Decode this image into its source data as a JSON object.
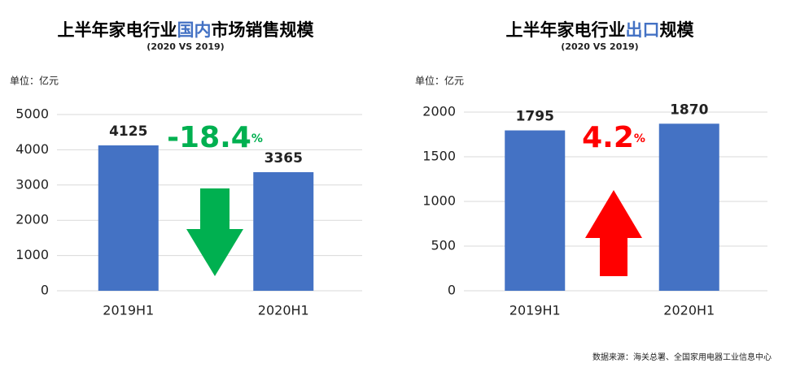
{
  "unit_label_left": "单位：亿元",
  "unit_label_right": "单位：亿元",
  "source": "数据来源：海关总署、全国家用电器工业信息中心",
  "chart_data": [
    {
      "type": "bar",
      "title": [
        "上半年家电行业",
        "国内",
        "市场销售规模"
      ],
      "title_colors": [
        "#000000",
        "#4472c4",
        "#000000"
      ],
      "subtitle": "(2020 VS 2019)",
      "categories": [
        "2019H1",
        "2020H1"
      ],
      "values": [
        4125,
        3365
      ],
      "color": "#4472c4",
      "ylim": [
        0,
        5000
      ],
      "yticks": [
        0,
        1000,
        2000,
        3000,
        4000,
        5000
      ],
      "grid": true,
      "change": {
        "text": "-18.4",
        "unit": "%",
        "color": "#00b050",
        "direction": "down"
      }
    },
    {
      "type": "bar",
      "title": [
        "上半年家电行业",
        "出口",
        "规模"
      ],
      "title_colors": [
        "#000000",
        "#4472c4",
        "#000000"
      ],
      "subtitle": "(2020 VS 2019)",
      "categories": [
        "2019H1",
        "2020H1"
      ],
      "values": [
        1795,
        1870
      ],
      "color": "#4472c4",
      "ylim": [
        0,
        2000
      ],
      "yticks": [
        0,
        500,
        1000,
        1500,
        2000
      ],
      "grid": true,
      "change": {
        "text": "4.2",
        "unit": "%",
        "color": "#ff0000",
        "direction": "up"
      }
    }
  ]
}
